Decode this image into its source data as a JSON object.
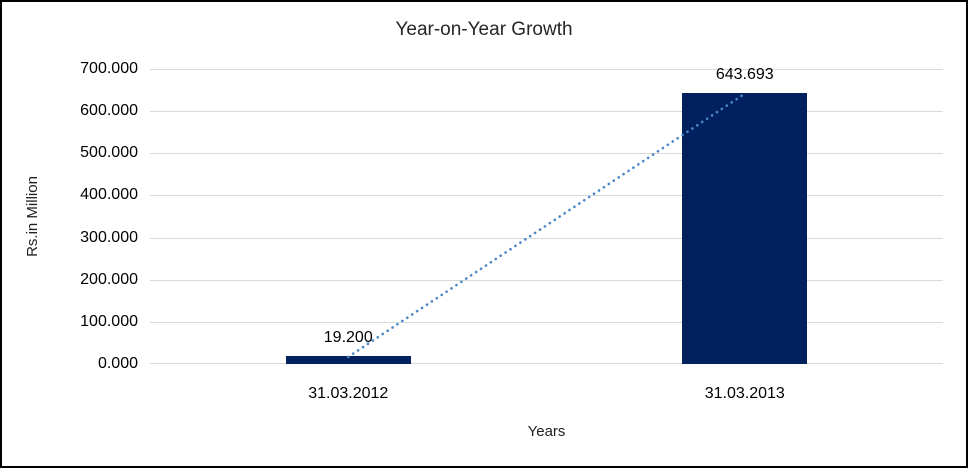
{
  "chart_data": {
    "type": "bar",
    "title": "Year-on-Year Growth",
    "xlabel": "Years",
    "ylabel": "Rs.in Million",
    "categories": [
      "31.03.2012",
      "31.03.2013"
    ],
    "values": [
      19.2,
      643.693
    ],
    "data_labels": [
      "19.200",
      "643.693"
    ],
    "y_ticks": [
      "0.000",
      "100.000",
      "200.000",
      "300.000",
      "400.000",
      "500.000",
      "600.000",
      "700.000"
    ],
    "ylim": [
      0,
      700
    ],
    "grid": true,
    "legend": "none",
    "bar_color": "#01215E",
    "gridline_color": "#D9D9D9",
    "trendline_color": "#4A86C8",
    "frame_border_color": "#000000"
  }
}
